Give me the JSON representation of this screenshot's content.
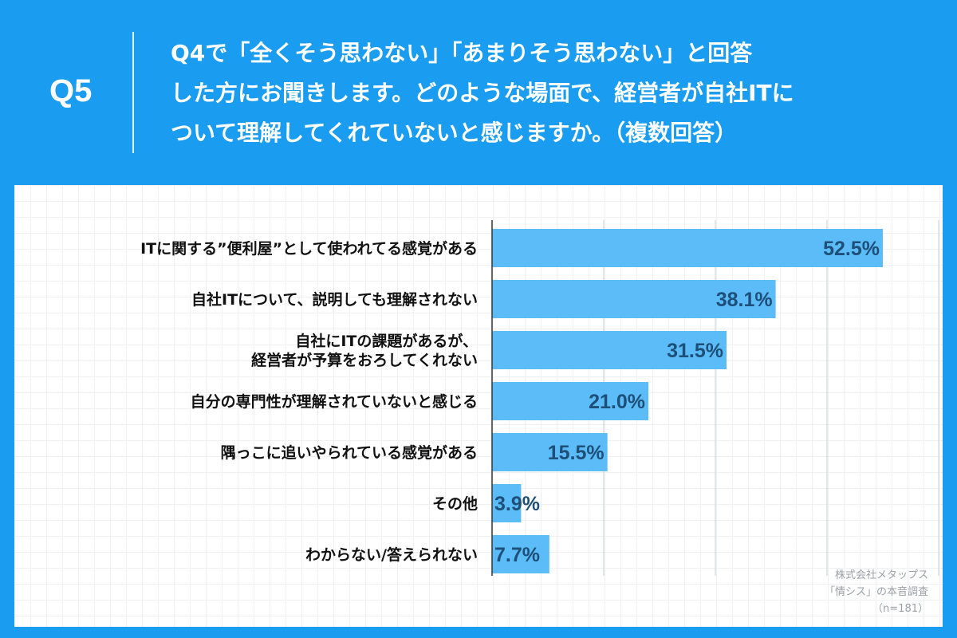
{
  "header": {
    "q_label": "Q5",
    "question": "Q4で「全くそう思わない」「あまりそう思わない」と回答\nした方にお聞きします。どのような場面で、経営者が自社ITに\nついて理解してくれていないと感じますか。（複数回答）"
  },
  "colors": {
    "background": "#1a9cf0",
    "bar": "#5bbcf8",
    "value_text": "#1d4f78",
    "label_text": "#111111",
    "grid": "#c8ccd0"
  },
  "chart_data": {
    "type": "bar",
    "orientation": "horizontal",
    "categories": [
      "ITに関する”便利屋”として使われてる感覚がある",
      "自社ITについて、説明しても理解されない",
      "自社にITの課題があるが、\n経営者が予算をおろしてくれない",
      "自分の専門性が理解されていないと感じる",
      "隅っこに追いやられている感覚がある",
      "その他",
      "わからない/答えられない"
    ],
    "values": [
      52.5,
      38.1,
      31.5,
      21.0,
      15.5,
      3.9,
      7.7
    ],
    "value_labels": [
      "52.5%",
      "38.1%",
      "31.5%",
      "21.0%",
      "15.5%",
      "3.9%",
      "7.7%"
    ],
    "xlim": [
      0,
      60
    ],
    "gridlines": [
      0,
      15,
      30,
      45,
      60
    ],
    "grid": true,
    "unit": "%"
  },
  "credit": {
    "line1": "株式会社メタップス",
    "line2": "「情シス」の本音調査",
    "line3": "（n=181）"
  }
}
